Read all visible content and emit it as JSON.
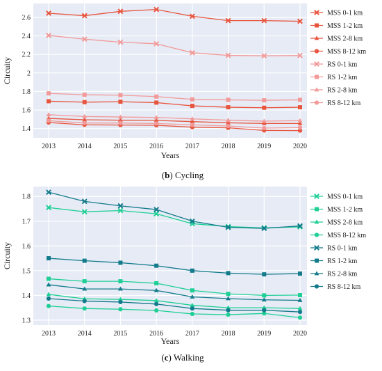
{
  "chart_data": [
    {
      "type": "line",
      "caption_letter": "b",
      "caption_text": "Cycling",
      "xlabel": "Years",
      "ylabel": "Circuity",
      "x": [
        "2013",
        "2014",
        "2015",
        "2016",
        "2017",
        "2018",
        "2019",
        "2020"
      ],
      "ylim": [
        1.3,
        2.75
      ],
      "yticks": [
        "1.4",
        "1.6",
        "1.8",
        "2",
        "2.2",
        "2.4",
        "2.6"
      ],
      "grid": true,
      "legend_position": "right",
      "series": [
        {
          "name": "MSS 0-1 km",
          "marker": "x",
          "color": "#e8553e",
          "values": [
            2.645,
            2.618,
            2.665,
            2.685,
            2.612,
            2.565,
            2.565,
            2.558
          ]
        },
        {
          "name": "MSS 1-2 km",
          "marker": "square",
          "color": "#e8553e",
          "values": [
            1.695,
            1.685,
            1.69,
            1.68,
            1.645,
            1.63,
            1.625,
            1.63
          ]
        },
        {
          "name": "MSS 2-8 km",
          "marker": "triangle",
          "color": "#e8553e",
          "values": [
            1.51,
            1.495,
            1.49,
            1.488,
            1.475,
            1.462,
            1.455,
            1.455
          ]
        },
        {
          "name": "MSS 8-12 km",
          "marker": "circle",
          "color": "#e8553e",
          "values": [
            1.465,
            1.44,
            1.438,
            1.435,
            1.415,
            1.408,
            1.38,
            1.378
          ]
        },
        {
          "name": "RS 0-1 km",
          "marker": "x",
          "color": "#f29a99",
          "values": [
            2.405,
            2.365,
            2.332,
            2.315,
            2.218,
            2.19,
            2.185,
            2.188
          ]
        },
        {
          "name": "RS 1-2 km",
          "marker": "square",
          "color": "#f29a99",
          "values": [
            1.78,
            1.765,
            1.76,
            1.745,
            1.715,
            1.71,
            1.705,
            1.71
          ]
        },
        {
          "name": "RS 2-8 km",
          "marker": "triangle",
          "color": "#f29a99",
          "values": [
            1.55,
            1.53,
            1.525,
            1.52,
            1.505,
            1.49,
            1.48,
            1.485
          ]
        },
        {
          "name": "RS 8-12 km",
          "marker": "circle",
          "color": "#f29a99",
          "values": [
            1.485,
            1.46,
            1.46,
            1.455,
            1.44,
            1.428,
            1.405,
            1.41
          ]
        }
      ]
    },
    {
      "type": "line",
      "caption_letter": "c",
      "caption_text": "Walking",
      "xlabel": "Years",
      "ylabel": "Circuity",
      "x": [
        "2013",
        "2014",
        "2015",
        "2016",
        "2017",
        "2018",
        "2019",
        "2020"
      ],
      "ylim": [
        1.28,
        1.84
      ],
      "yticks": [
        "1.3",
        "1.4",
        "1.5",
        "1.6",
        "1.7",
        "1.8"
      ],
      "grid": true,
      "legend_position": "right",
      "series": [
        {
          "name": "MSS 0-1 km",
          "marker": "x",
          "color": "#1fcf96",
          "values": [
            1.755,
            1.738,
            1.743,
            1.73,
            1.69,
            1.678,
            1.673,
            1.677
          ]
        },
        {
          "name": "MSS 1-2 km",
          "marker": "square",
          "color": "#1fcf96",
          "values": [
            1.467,
            1.457,
            1.457,
            1.449,
            1.42,
            1.406,
            1.4,
            1.401
          ]
        },
        {
          "name": "MSS 2-8 km",
          "marker": "triangle",
          "color": "#1fcf96",
          "values": [
            1.404,
            1.386,
            1.384,
            1.379,
            1.36,
            1.35,
            1.35,
            1.347
          ]
        },
        {
          "name": "MSS 8-12 km",
          "marker": "circle",
          "color": "#1fcf96",
          "values": [
            1.357,
            1.347,
            1.344,
            1.339,
            1.325,
            1.322,
            1.327,
            1.31
          ]
        },
        {
          "name": "RS 0-1 km",
          "marker": "x",
          "color": "#137b8c",
          "values": [
            1.817,
            1.78,
            1.762,
            1.747,
            1.7,
            1.675,
            1.671,
            1.681
          ]
        },
        {
          "name": "RS 1-2 km",
          "marker": "square",
          "color": "#137b8c",
          "values": [
            1.55,
            1.54,
            1.532,
            1.52,
            1.5,
            1.49,
            1.485,
            1.488
          ]
        },
        {
          "name": "RS 2-8 km",
          "marker": "triangle",
          "color": "#137b8c",
          "values": [
            1.443,
            1.426,
            1.426,
            1.42,
            1.394,
            1.387,
            1.382,
            1.38
          ]
        },
        {
          "name": "RS 8-12 km",
          "marker": "circle",
          "color": "#137b8c",
          "values": [
            1.387,
            1.377,
            1.373,
            1.365,
            1.347,
            1.34,
            1.34,
            1.333
          ]
        }
      ]
    }
  ]
}
